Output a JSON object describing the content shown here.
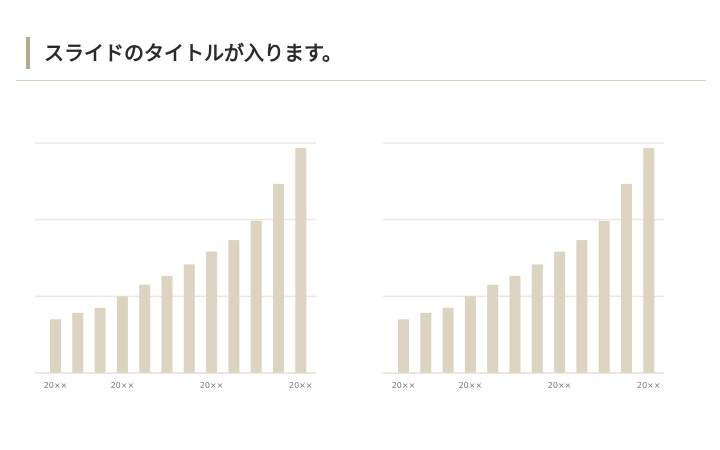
{
  "slide": {
    "title": "スライドのタイトルが入ります。"
  },
  "colors": {
    "accent": "#b7aa90",
    "bar": "#dcd3c0",
    "gridline": "#ece8de",
    "rule": "#d8d1c2"
  },
  "chart_data": [
    {
      "type": "bar",
      "categories": [
        "",
        "",
        "",
        "",
        "",
        "",
        "",
        "",
        "",
        "",
        "",
        ""
      ],
      "tick_labels": [
        "20××",
        "",
        "",
        "20××",
        "",
        "",
        "",
        "20××",
        "",
        "",
        "",
        "20××"
      ],
      "values": [
        2.1,
        2.35,
        2.55,
        3.0,
        3.45,
        3.8,
        4.25,
        4.75,
        5.2,
        5.95,
        7.4,
        8.8
      ],
      "ylim": [
        0,
        9
      ],
      "grid": true,
      "title": "",
      "xlabel": "",
      "ylabel": ""
    },
    {
      "type": "bar",
      "categories": [
        "",
        "",
        "",
        "",
        "",
        "",
        "",
        "",
        "",
        "",
        "",
        ""
      ],
      "tick_labels": [
        "20××",
        "",
        "",
        "20××",
        "",
        "",
        "",
        "20××",
        "",
        "",
        "",
        "20××"
      ],
      "values": [
        2.1,
        2.35,
        2.55,
        3.0,
        3.45,
        3.8,
        4.25,
        4.75,
        5.2,
        5.95,
        7.4,
        8.8
      ],
      "ylim": [
        0,
        9
      ],
      "grid": true,
      "title": "",
      "xlabel": "",
      "ylabel": ""
    }
  ]
}
